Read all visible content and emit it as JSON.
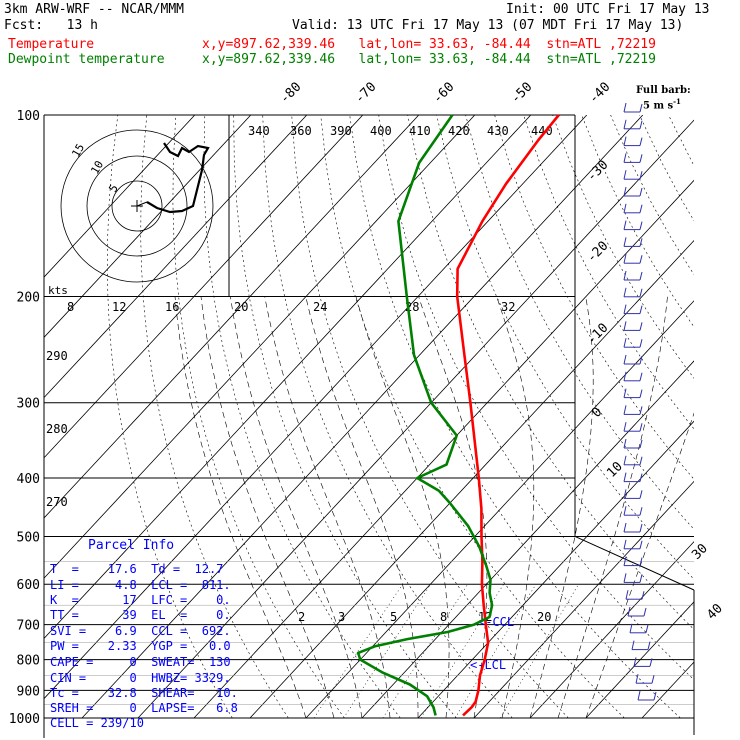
{
  "header": {
    "model": "3km ARW-WRF -- NCAR/MMM",
    "init": "Init: 00 UTC Fri 17 May 13",
    "fcst": "Fcst:   13 h",
    "valid": "Valid: 13 UTC Fri 17 May 13 (07 MDT Fri 17 May 13)",
    "temp_label": "Temperature",
    "temp_loc": "x,y=897.62,339.46   lat,lon= 33.63, -84.44  stn=ATL ,72219",
    "dew_label": "Dewpoint temperature",
    "dew_loc": "x,y=897.62,339.46   lat,lon= 33.63, -84.44  stn=ATL ,72219",
    "full_barb": "Full barb:",
    "barb_unit": "5 m s",
    "barb_exp": "-1"
  },
  "colors": {
    "temperature": "#ff0000",
    "dewpoint": "#008000",
    "info": "#0000ff",
    "grid": "#000000"
  },
  "chart_data": {
    "type": "line",
    "title": "",
    "pressure_levels": [
      100,
      200,
      300,
      400,
      500,
      600,
      700,
      800,
      900,
      1000
    ],
    "temp_scale_top": [
      "-80",
      "-70",
      "-60",
      "-50",
      "-40"
    ],
    "temp_scale_right": [
      "-30",
      "-20",
      "-10",
      "0",
      "10",
      "30",
      "40"
    ],
    "theta_labels": [
      "340",
      "360",
      "390",
      "400",
      "410",
      "420",
      "430",
      "440"
    ],
    "theta_left": [
      "290",
      "280",
      "270"
    ],
    "mixing_ratio_labels": [
      "2",
      "3",
      "5",
      "8",
      "12",
      "20"
    ],
    "hodo": {
      "unit": "kts",
      "rings": [
        "5",
        "10",
        "15"
      ],
      "speed_axis": [
        "8",
        "12",
        "16",
        "20",
        "24",
        "28",
        "32"
      ]
    },
    "lcl_label": "<-LCL",
    "ccl_label": "<-CCL",
    "series": [
      {
        "name": "Temperature",
        "p": [
          990,
          960,
          940,
          900,
          850,
          800,
          750,
          700,
          650,
          600,
          550,
          500,
          450,
          400,
          350,
          300,
          250,
          200,
          180,
          150,
          130,
          110,
          100
        ],
        "t": [
          17.6,
          17.8,
          17.6,
          16.2,
          14.0,
          12.2,
          10.0,
          6.6,
          3.0,
          -0.8,
          -4.5,
          -8.8,
          -13.4,
          -19.0,
          -25.5,
          -33.0,
          -42.0,
          -53.0,
          -57.5,
          -61.0,
          -63.0,
          -64.5,
          -65.0
        ]
      },
      {
        "name": "Dewpoint temperature",
        "p": [
          990,
          960,
          920,
          880,
          840,
          800,
          780,
          760,
          740,
          720,
          700,
          680,
          650,
          620,
          590,
          560,
          520,
          480,
          440,
          420,
          400,
          380,
          340,
          300,
          250,
          200,
          150,
          120,
          100
        ],
        "t": [
          12.7,
          11.0,
          8.0,
          3.0,
          -4.0,
          -10.0,
          -11.5,
          -9.5,
          -5.0,
          1.0,
          4.5,
          6.0,
          4.5,
          2.0,
          0.0,
          -3.0,
          -7.5,
          -13.0,
          -20.0,
          -24.0,
          -30.0,
          -27.0,
          -30.0,
          -40.0,
          -51.0,
          -62.0,
          -76.0,
          -82.0,
          -84.0
        ]
      }
    ],
    "wind_barbs_count": 36
  },
  "parcel": {
    "title": "Parcel Info",
    "rows": [
      "T  =    17.6  Td =  12.7",
      "LI =     4.8  LCL =  811.",
      "K  =      17  LFC =    0.",
      "TT =      39  EL  =    0.",
      "SVI =    6.9  CCL =  692.",
      "PW =    2.33  YGP =   0.0",
      "CAPE =     0  SWEAT=  130",
      "CIN =      0  HWBZ= 3329.",
      "Tc =    32.8  SHEAR=   10.",
      "SREH =     0  LAPSE=   6.8",
      "CELL = 239/10"
    ]
  }
}
